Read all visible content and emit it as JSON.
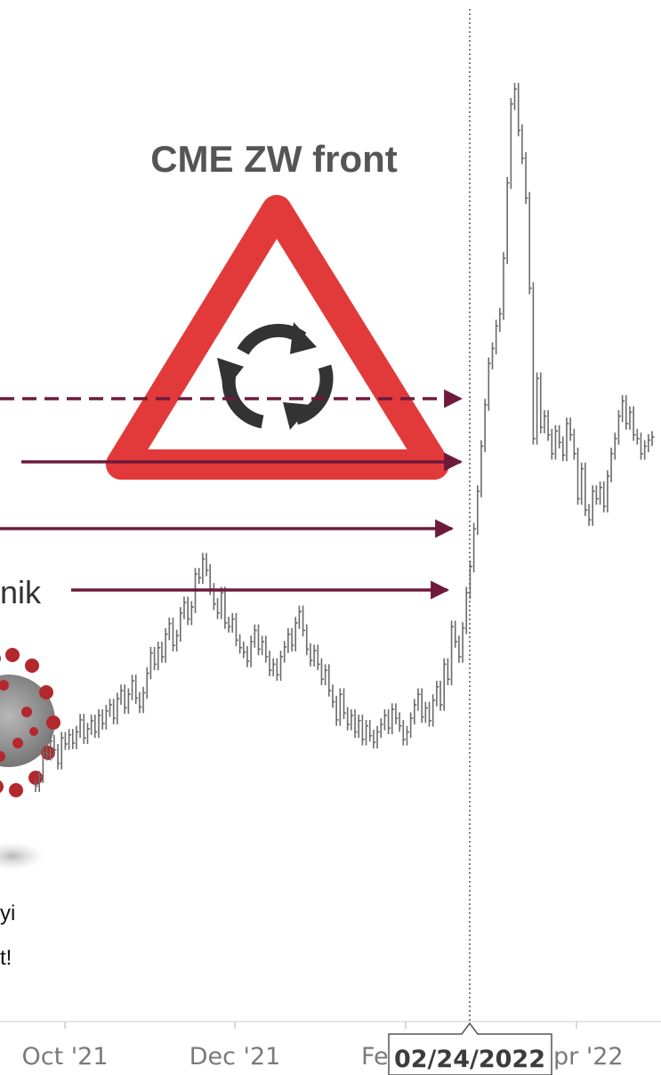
{
  "chart_data": {
    "type": "line",
    "title": "CME ZW front",
    "xlabel": "",
    "ylabel": "",
    "x_tick_labels": [
      "Oct '21",
      "Dec '21",
      "Fe",
      "pr '22"
    ],
    "crosshair_date_label": "02/24/2022",
    "annotations": [
      "nik",
      "yi",
      "t!"
    ],
    "series": [
      {
        "values": [
          718,
          730,
          762,
          760,
          778,
          766,
          748,
          782,
          774,
          786,
          775,
          790,
          806,
          782,
          794,
          805,
          790,
          812,
          801,
          818,
          826,
          808,
          834,
          845,
          822,
          840,
          858,
          835,
          823,
          842,
          868,
          895,
          880,
          902,
          890,
          920,
          934,
          905,
          918,
          948,
          962,
          940,
          956,
          1000,
          995,
          1020,
          1005,
          980,
          960,
          948,
          975,
          935,
          930,
          940,
          912,
          902,
          896,
          884,
          910,
          925,
          900,
          910,
          890,
          872,
          880,
          866,
          890,
          903,
          920,
          905,
          935,
          950,
          925,
          900,
          885,
          898,
          880,
          860,
          872,
          845,
          830,
          806,
          840,
          815,
          800,
          812,
          790,
          805,
          780,
          798,
          785,
          776,
          790,
          800,
          812,
          795,
          820,
          808,
          798,
          780,
          790,
          808,
          826,
          840,
          810,
          822,
          805,
          832,
          850,
          826,
          880,
          860,
          930,
          910,
          890,
          928,
          975,
          1010,
          1060,
          1110,
          1170,
          1225,
          1280,
          1300,
          1330,
          1346,
          1420,
          1520,
          1625,
          1645,
          1590,
          1553,
          1500,
          1380,
          1180,
          1260,
          1195,
          1210,
          1185,
          1160,
          1190,
          1175,
          1158,
          1200,
          1185,
          1160,
          1100,
          1140,
          1085,
          1072,
          1110,
          1100,
          1115,
          1090,
          1130,
          1160,
          1180,
          1210,
          1230,
          1200,
          1215,
          1185,
          1180,
          1160,
          1170,
          1178,
          1182
        ]
      }
    ],
    "arrows": 4
  },
  "colors": {
    "price_bars": "#6b6b6b",
    "arrows": "#6e1a3c",
    "sign_border": "#e23a3a",
    "sign_icon": "#333333",
    "virus_red": "#b3282d",
    "virus_grey": "#8a8a8a"
  }
}
